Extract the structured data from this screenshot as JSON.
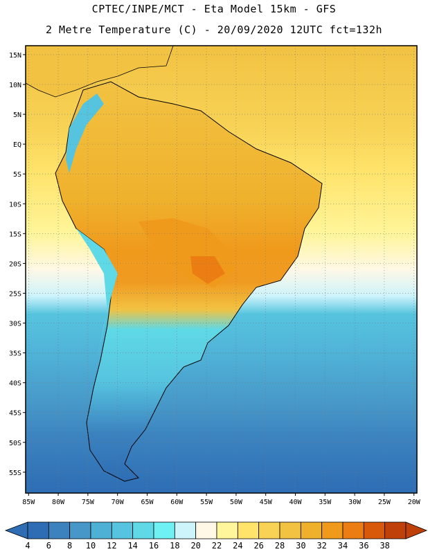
{
  "header": {
    "line1": "CPTEC/INPE/MCT -  Eta Model 15km - GFS",
    "line2": "2 Metre Temperature (C) - 20/09/2020 12UTC fct=132h"
  },
  "map": {
    "lat_labels": [
      "15N",
      "10N",
      "5N",
      "EQ",
      "5S",
      "10S",
      "15S",
      "20S",
      "25S",
      "30S",
      "35S",
      "40S",
      "45S",
      "50S",
      "55S"
    ],
    "lat_values": [
      15,
      10,
      5,
      0,
      -5,
      -10,
      -15,
      -20,
      -25,
      -30,
      -35,
      -40,
      -45,
      -50,
      -55
    ],
    "lon_labels": [
      "85W",
      "80W",
      "75W",
      "70W",
      "65W",
      "60W",
      "55W",
      "50W",
      "45W",
      "40W",
      "35W",
      "30W",
      "25W",
      "20W"
    ],
    "lon_values": [
      -85,
      -80,
      -75,
      -70,
      -65,
      -60,
      -55,
      -50,
      -45,
      -40,
      -35,
      -30,
      -25,
      -20
    ],
    "extent": {
      "lon_min": -85.5,
      "lon_max": -19.5,
      "lat_min": -58.5,
      "lat_max": 16.5
    }
  },
  "colorbar": {
    "ticks": [
      "4",
      "6",
      "8",
      "10",
      "12",
      "14",
      "16",
      "18",
      "20",
      "22",
      "24",
      "26",
      "28",
      "30",
      "32",
      "34",
      "36",
      "38"
    ],
    "under_color": "#2e6db4",
    "over_color": "#c0400a",
    "colors": [
      "#2e6db4",
      "#3b82bf",
      "#4798c8",
      "#4fb0d6",
      "#56c4df",
      "#5fd9e6",
      "#6ff0f2",
      "#cdf3fb",
      "#fff8e6",
      "#fff59a",
      "#ffe36a",
      "#f7d255",
      "#f2c242",
      "#efb12c",
      "#f09a1c",
      "#ec7d12",
      "#d9590a",
      "#c0400a"
    ]
  }
}
